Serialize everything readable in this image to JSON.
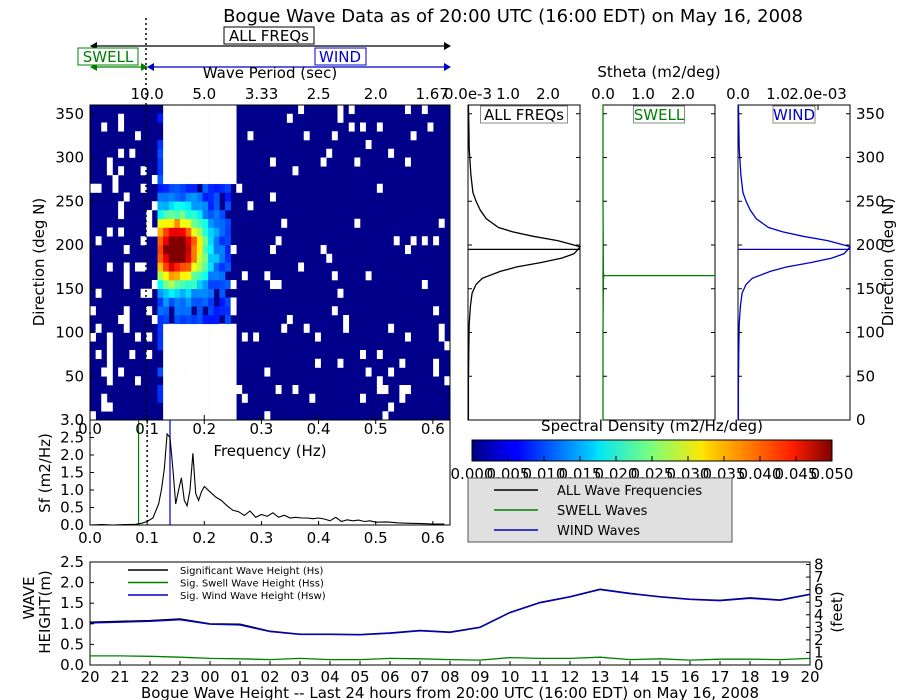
{
  "title": "Bogue Wave Data as of 20:00 UTC (16:00 EDT) on May 16, 2008",
  "band_labels": {
    "all": "ALL FREQs",
    "swell": "SWELL",
    "wind": "WIND"
  },
  "colors": {
    "all": "#000000",
    "swell": "#008000",
    "wind": "#0000cc",
    "heatmap_bg": "#00008b"
  },
  "chart_data": [
    {
      "id": "directional-spectrum",
      "type": "heatmap",
      "xlabel": "Frequency (Hz)",
      "ylabel": "Direction (deg N)",
      "top_axis_label": "Wave Period (sec)",
      "top_ticks": [
        "10.0",
        "5.0",
        "3.33",
        "2.5",
        "2.0",
        "1.67"
      ],
      "x_ticks": [
        "0.0",
        "0.1",
        "0.2",
        "0.3",
        "0.4",
        "0.5",
        "0.6"
      ],
      "y_ticks": [
        "0",
        "50",
        "100",
        "150",
        "200",
        "250",
        "300",
        "350"
      ],
      "xlim": [
        0.0,
        0.63
      ],
      "ylim": [
        0,
        360
      ],
      "separation_frequency": 0.1,
      "peak_direction": 195
    },
    {
      "id": "stheta-panels",
      "type": "line",
      "title": "Stheta (m2/deg)",
      "ylabel_right": "Direction (deg N)",
      "y_ticks": [
        "0",
        "50",
        "100",
        "150",
        "200",
        "250",
        "300",
        "350"
      ],
      "panels": [
        {
          "label": "ALL FREQs",
          "ticks": [
            "0.0e-3",
            "1.0",
            "2.0"
          ],
          "mean_direction": 195,
          "profile": [
            [
              0,
              0.01
            ],
            [
              40,
              0.01
            ],
            [
              80,
              0.02
            ],
            [
              110,
              0.03
            ],
            [
              130,
              0.06
            ],
            [
              145,
              0.1
            ],
            [
              155,
              0.2
            ],
            [
              162,
              0.35
            ],
            [
              170,
              0.8
            ],
            [
              175,
              1.2
            ],
            [
              180,
              1.8
            ],
            [
              185,
              2.3
            ],
            [
              190,
              2.6
            ],
            [
              195,
              2.7
            ],
            [
              198,
              2.75
            ],
            [
              200,
              2.6
            ],
            [
              205,
              2.2
            ],
            [
              210,
              1.6
            ],
            [
              215,
              1.1
            ],
            [
              220,
              0.75
            ],
            [
              230,
              0.45
            ],
            [
              240,
              0.3
            ],
            [
              250,
              0.2
            ],
            [
              260,
              0.12
            ],
            [
              280,
              0.07
            ],
            [
              310,
              0.03
            ],
            [
              340,
              0.02
            ],
            [
              360,
              0.01
            ]
          ]
        },
        {
          "label": "SWELL",
          "ticks": [
            "0.0",
            "1.0",
            "2.0"
          ],
          "mean_direction": 165,
          "profile": [
            [
              0,
              0.0
            ],
            [
              100,
              0.0
            ],
            [
              160,
              0.01
            ],
            [
              165,
              0.02
            ],
            [
              170,
              0.01
            ],
            [
              250,
              0.0
            ],
            [
              360,
              0.0
            ]
          ]
        },
        {
          "label": "WIND",
          "ticks": [
            "0.0",
            "1.0",
            "2.0e-03"
          ],
          "mean_direction": 195,
          "profile": [
            [
              0,
              0.01
            ],
            [
              40,
              0.01
            ],
            [
              80,
              0.02
            ],
            [
              110,
              0.03
            ],
            [
              130,
              0.06
            ],
            [
              145,
              0.1
            ],
            [
              155,
              0.2
            ],
            [
              162,
              0.35
            ],
            [
              170,
              0.8
            ],
            [
              175,
              1.2
            ],
            [
              180,
              1.8
            ],
            [
              185,
              2.3
            ],
            [
              190,
              2.6
            ],
            [
              195,
              2.7
            ],
            [
              198,
              2.75
            ],
            [
              200,
              2.6
            ],
            [
              205,
              2.2
            ],
            [
              210,
              1.6
            ],
            [
              215,
              1.1
            ],
            [
              220,
              0.75
            ],
            [
              230,
              0.45
            ],
            [
              240,
              0.3
            ],
            [
              250,
              0.2
            ],
            [
              260,
              0.12
            ],
            [
              280,
              0.07
            ],
            [
              310,
              0.03
            ],
            [
              340,
              0.02
            ],
            [
              360,
              0.01
            ]
          ]
        }
      ]
    },
    {
      "id": "colorbar",
      "type": "heatmap",
      "title": "Spectral Density (m2/Hz/deg)",
      "ticks": [
        "0.000",
        "0.005",
        "0.010",
        "0.015",
        "0.020",
        "0.025",
        "0.030",
        "0.035",
        "0.040",
        "0.045",
        "0.050"
      ],
      "range": [
        0.0,
        0.05
      ]
    },
    {
      "id": "frequency-spectrum",
      "type": "line",
      "xlabel": "Frequency (Hz)",
      "ylabel": "Sf (m2/Hz)",
      "x_ticks": [
        "0.0",
        "0.1",
        "0.2",
        "0.3",
        "0.4",
        "0.5",
        "0.6"
      ],
      "y_ticks": [
        "0.0",
        "0.5",
        "1.0",
        "1.5",
        "2.0",
        "2.5",
        "3.0"
      ],
      "xlim": [
        0.0,
        0.63
      ],
      "ylim": [
        0,
        3.0
      ],
      "swell_separation": 0.085,
      "wind_separation": 0.14,
      "period_separation": 0.1,
      "x": [
        0.0,
        0.02,
        0.04,
        0.06,
        0.08,
        0.09,
        0.1,
        0.11,
        0.12,
        0.125,
        0.13,
        0.135,
        0.14,
        0.145,
        0.15,
        0.155,
        0.16,
        0.165,
        0.17,
        0.175,
        0.18,
        0.185,
        0.19,
        0.195,
        0.2,
        0.21,
        0.22,
        0.23,
        0.24,
        0.25,
        0.26,
        0.27,
        0.28,
        0.29,
        0.3,
        0.31,
        0.32,
        0.33,
        0.34,
        0.35,
        0.36,
        0.37,
        0.38,
        0.39,
        0.4,
        0.41,
        0.42,
        0.43,
        0.44,
        0.45,
        0.46,
        0.47,
        0.48,
        0.49,
        0.5,
        0.52,
        0.54,
        0.56,
        0.58,
        0.6,
        0.62
      ],
      "y": [
        0.0,
        0.01,
        0.0,
        0.01,
        0.02,
        0.05,
        0.1,
        0.2,
        0.6,
        1.0,
        1.6,
        2.6,
        2.5,
        1.6,
        0.6,
        1.0,
        1.35,
        0.7,
        0.55,
        1.0,
        2.05,
        0.9,
        0.7,
        0.95,
        1.1,
        0.95,
        0.8,
        0.7,
        0.55,
        0.42,
        0.38,
        0.27,
        0.4,
        0.22,
        0.3,
        0.25,
        0.35,
        0.22,
        0.28,
        0.2,
        0.22,
        0.2,
        0.2,
        0.18,
        0.2,
        0.17,
        0.12,
        0.22,
        0.1,
        0.15,
        0.12,
        0.14,
        0.1,
        0.12,
        0.08,
        0.09,
        0.06,
        0.05,
        0.04,
        0.03,
        0.03
      ]
    },
    {
      "id": "legend",
      "type": "line",
      "entries": [
        {
          "name": "ALL Wave Frequencies",
          "color": "#000000"
        },
        {
          "name": "SWELL Waves",
          "color": "#008000"
        },
        {
          "name": "WIND Waves",
          "color": "#0000cc"
        }
      ]
    },
    {
      "id": "wave-height-history",
      "type": "line",
      "xlabel": "Bogue Wave Height -- Last 24 hours from 20:00 UTC (16:00 EDT) on May 16, 2008",
      "ylabel": "WAVE\nHEIGHT(m)",
      "ylabel_right": "(feet)",
      "x_ticks": [
        "20",
        "21",
        "22",
        "23",
        "00",
        "01",
        "02",
        "03",
        "04",
        "05",
        "06",
        "07",
        "08",
        "09",
        "10",
        "11",
        "12",
        "13",
        "14",
        "15",
        "16",
        "17",
        "18",
        "19",
        "20"
      ],
      "y_ticks": [
        "0.0",
        "0.5",
        "1.0",
        "1.5",
        "2.0",
        "2.5"
      ],
      "y_ticks_right": [
        "0",
        "1",
        "2",
        "3",
        "4",
        "5",
        "6",
        "7",
        "8"
      ],
      "ylim": [
        0,
        2.5
      ],
      "ylim_right": [
        0,
        8.2
      ],
      "series": [
        {
          "name": "Significant Wave Height (Hs)",
          "color": "#000000",
          "values": [
            1.04,
            1.06,
            1.08,
            1.12,
            1.0,
            0.99,
            0.82,
            0.75,
            0.75,
            0.74,
            0.78,
            0.84,
            0.8,
            0.92,
            1.28,
            1.52,
            1.66,
            1.84,
            1.74,
            1.66,
            1.6,
            1.57,
            1.63,
            1.58,
            1.72
          ]
        },
        {
          "name": "Sig. Swell Wave Height (Hss)",
          "color": "#008000",
          "values": [
            0.22,
            0.22,
            0.21,
            0.19,
            0.16,
            0.15,
            0.13,
            0.16,
            0.13,
            0.13,
            0.16,
            0.15,
            0.13,
            0.12,
            0.18,
            0.16,
            0.16,
            0.19,
            0.13,
            0.15,
            0.12,
            0.14,
            0.14,
            0.13,
            0.16
          ]
        },
        {
          "name": "Sig. Wind Wave Height (Hsw)",
          "color": "#0000cc",
          "values": [
            1.02,
            1.04,
            1.06,
            1.1,
            0.99,
            0.97,
            0.81,
            0.74,
            0.74,
            0.73,
            0.77,
            0.83,
            0.79,
            0.91,
            1.27,
            1.51,
            1.65,
            1.83,
            1.73,
            1.65,
            1.59,
            1.56,
            1.62,
            1.57,
            1.71
          ]
        }
      ]
    }
  ]
}
